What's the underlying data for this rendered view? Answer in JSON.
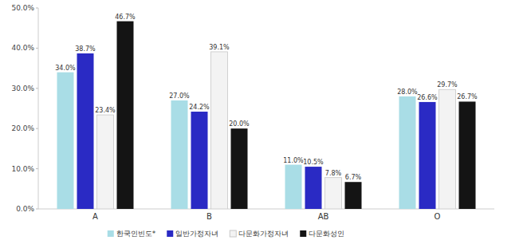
{
  "chart_data": {
    "type": "bar",
    "categories": [
      "A",
      "B",
      "AB",
      "O"
    ],
    "series": [
      {
        "name": "한국인빈도*",
        "color": "#a9dde6",
        "values": [
          34.0,
          27.0,
          11.0,
          28.0
        ],
        "value_labels": [
          "34.0%",
          "27.0%",
          "11.0%",
          "28.0%"
        ]
      },
      {
        "name": "일반가정자녀",
        "color": "#2a2ac4",
        "values": [
          38.7,
          24.2,
          10.5,
          26.6
        ],
        "value_labels": [
          "38.7%",
          "24.2%",
          "10.5%",
          "26.6%"
        ]
      },
      {
        "name": "다문화가정자녀",
        "color": "#f3f3f3",
        "values": [
          23.4,
          39.1,
          7.8,
          29.7
        ],
        "value_labels": [
          "23.4%",
          "39.1%",
          "7.8%",
          "29.7%"
        ]
      },
      {
        "name": "다문화성인",
        "color": "#141414",
        "values": [
          46.7,
          20.0,
          6.7,
          26.7
        ],
        "value_labels": [
          "46.7%",
          "20.0%",
          "6.7%",
          "26.7%"
        ]
      }
    ],
    "ylim": [
      0,
      50
    ],
    "yticks": [
      {
        "value": 0,
        "label": "0.0%"
      },
      {
        "value": 10,
        "label": "10.0%"
      },
      {
        "value": 20,
        "label": "20.0%"
      },
      {
        "value": 30,
        "label": "30.0%"
      },
      {
        "value": 40,
        "label": "40.0%"
      },
      {
        "value": 50,
        "label": "50.0%"
      }
    ],
    "grid": false,
    "data_labels": true,
    "legend": "bottom"
  }
}
